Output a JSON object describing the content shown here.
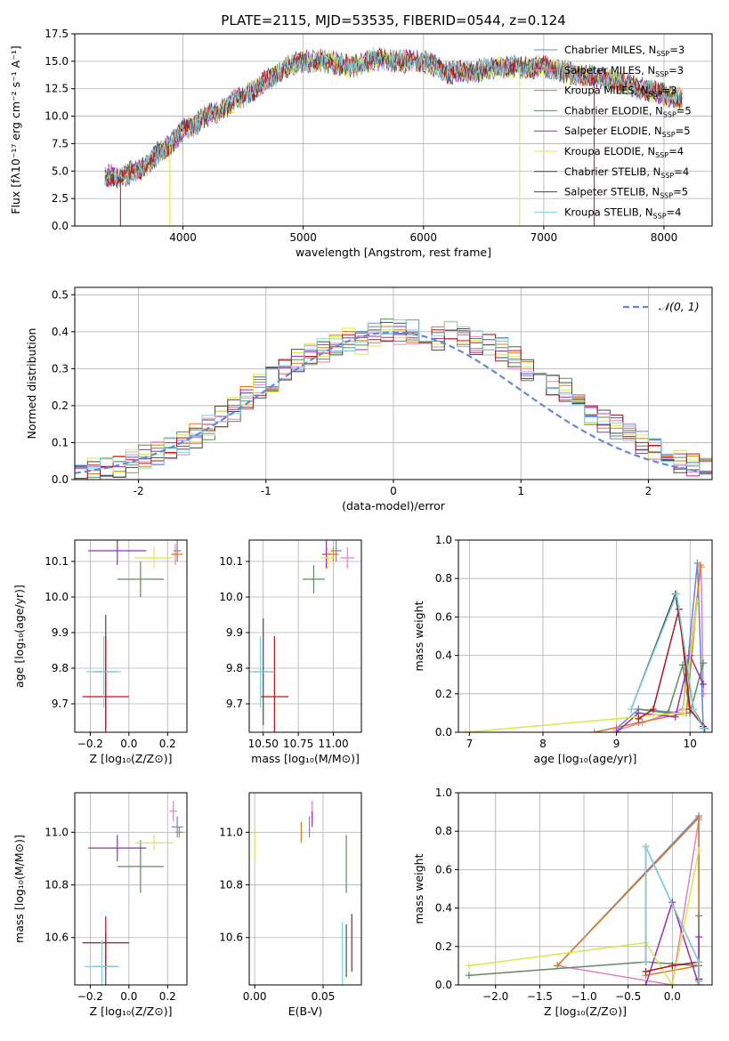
{
  "figure_title": "PLATE=2115, MJD=53535, FIBERID=0544, z=0.124",
  "chart_data": [
    {
      "id": "spectrum",
      "type": "line",
      "title": "PLATE=2115, MJD=53535, FIBERID=0544, z=0.124",
      "xlabel": "wavelength [Angstrom, rest frame]",
      "ylabel": "Flux [fλ10⁻¹⁷ erg cm⁻² s⁻¹ A⁻¹]",
      "xlim": [
        3100,
        8400
      ],
      "ylim": [
        0,
        17.5
      ],
      "xticks": [
        4000,
        5000,
        6000,
        7000,
        8000
      ],
      "yticks": [
        0.0,
        2.5,
        5.0,
        7.5,
        10.0,
        12.5,
        15.0,
        17.5
      ],
      "grid": true,
      "legend_position": "right",
      "continuum": {
        "x": [
          3350,
          3500,
          3600,
          3700,
          3800,
          3900,
          4000,
          4100,
          4200,
          4300,
          4400,
          4500,
          4600,
          4700,
          4800,
          4900,
          5000,
          5200,
          5400,
          5600,
          5800,
          6000,
          6200,
          6400,
          6600,
          6800,
          7000,
          7200,
          7400,
          7600,
          7800,
          8000,
          8150
        ],
        "y": [
          4.5,
          4.5,
          5.0,
          5.5,
          6.8,
          7.5,
          8.8,
          9.3,
          10.0,
          10.5,
          11.2,
          11.8,
          12.5,
          13.2,
          14.0,
          14.6,
          15.0,
          15.0,
          14.5,
          15.2,
          15.0,
          15.0,
          14.0,
          14.0,
          14.5,
          14.5,
          14.5,
          14.0,
          13.6,
          13.2,
          12.5,
          12.0,
          11.5
        ]
      },
      "spikes": [
        {
          "x": 3480,
          "y": 0,
          "series": "Salpeter STELIB"
        },
        {
          "x": 3890,
          "y": 0,
          "series": "Kroupa ELODIE"
        },
        {
          "x": 6800,
          "y": 0,
          "series": "Kroupa ELODIE"
        },
        {
          "x": 7420,
          "y": 0,
          "series": "Salpeter STELIB"
        }
      ],
      "series": [
        {
          "name": "Chabrier MILES",
          "nssp": "3",
          "color": "#6189d8"
        },
        {
          "name": "Salpeter MILES",
          "nssp": "3",
          "color": "#e282c3"
        },
        {
          "name": "Kroupa MILES",
          "nssp": "3",
          "color": "#e07b1c"
        },
        {
          "name": "Chabrier ELODIE",
          "nssp": "5",
          "color": "#5e8c5e"
        },
        {
          "name": "Salpeter ELODIE",
          "nssp": "5",
          "color": "#9a2fb3"
        },
        {
          "name": "Kroupa ELODIE",
          "nssp": "4",
          "color": "#d6e84e"
        },
        {
          "name": "Chabrier STELIB",
          "nssp": "4",
          "color": "#4a4a4a"
        },
        {
          "name": "Salpeter STELIB",
          "nssp": "5",
          "color": "#b3141e"
        },
        {
          "name": "Kroupa STELIB",
          "nssp": "4",
          "color": "#7fd4e0"
        }
      ]
    },
    {
      "id": "residuals",
      "type": "line",
      "xlabel": "(data-model)/error",
      "ylabel": "Normed distribution",
      "xlim": [
        -2.5,
        2.5
      ],
      "ylim": [
        0,
        0.52
      ],
      "xticks": [
        -2,
        -1,
        0,
        1,
        2
      ],
      "yticks": [
        0.0,
        0.1,
        0.2,
        0.3,
        0.4,
        0.5
      ],
      "grid": true,
      "legend_position": "top-right",
      "legend_label": "𝒩(0, 1)",
      "bin_width": 0.1,
      "bin_start": -2.5,
      "histogram": [
        0.03,
        0.03,
        0.035,
        0.04,
        0.05,
        0.06,
        0.07,
        0.085,
        0.1,
        0.12,
        0.14,
        0.165,
        0.19,
        0.22,
        0.25,
        0.27,
        0.29,
        0.32,
        0.34,
        0.35,
        0.37,
        0.38,
        0.37,
        0.39,
        0.4,
        0.4,
        0.4,
        0.39,
        0.38,
        0.4,
        0.38,
        0.37,
        0.36,
        0.35,
        0.33,
        0.3,
        0.28,
        0.26,
        0.24,
        0.21,
        0.18,
        0.16,
        0.14,
        0.12,
        0.1,
        0.08,
        0.07,
        0.05,
        0.04,
        0.03
      ],
      "gaussian": {
        "name": "N(0,1)",
        "color": "#6189d8"
      }
    },
    {
      "id": "age-vs-Z",
      "type": "scatter",
      "xlabel": "Z [log₁₀(Z/Z⊙)]",
      "ylabel": "age  [log₁₀(age/yr)]",
      "xlim": [
        -0.28,
        0.3
      ],
      "ylim": [
        9.62,
        10.16
      ],
      "xticks": [
        -0.2,
        0.0,
        0.2
      ],
      "xticklabels": [
        "−0.2",
        "0.0",
        "0.2"
      ],
      "yticks": [
        9.7,
        9.8,
        9.9,
        10.0,
        10.1
      ],
      "grid": true,
      "points": [
        {
          "x": 0.25,
          "y": 10.13,
          "xerr": 0.02,
          "yerr": 0.03,
          "color": "#6189d8"
        },
        {
          "x": 0.24,
          "y": 10.12,
          "xerr": 0.02,
          "yerr": 0.03,
          "color": "#e282c3"
        },
        {
          "x": 0.25,
          "y": 10.12,
          "xerr": 0.03,
          "yerr": 0.02,
          "color": "#e07b1c"
        },
        {
          "x": 0.06,
          "y": 10.05,
          "xerr": 0.12,
          "yerr": 0.05,
          "color": "#5e8c5e"
        },
        {
          "x": -0.06,
          "y": 10.13,
          "xerr": 0.15,
          "yerr": 0.04,
          "color": "#9a2fb3"
        },
        {
          "x": 0.13,
          "y": 10.11,
          "xerr": 0.1,
          "yerr": 0.03,
          "color": "#d6e84e"
        },
        {
          "x": -0.12,
          "y": 9.79,
          "xerr": 0.06,
          "yerr": 0.16,
          "color": "#4a4a4a"
        },
        {
          "x": -0.12,
          "y": 9.72,
          "xerr": 0.12,
          "yerr": 0.17,
          "color": "#b3141e"
        },
        {
          "x": -0.13,
          "y": 9.79,
          "xerr": 0.09,
          "yerr": 0.1,
          "color": "#7fd4e0"
        }
      ]
    },
    {
      "id": "age-vs-mass",
      "type": "scatter",
      "xlabel": "mass [log₁₀(M/M⊙)]",
      "xlim": [
        10.4,
        11.2
      ],
      "ylim": [
        9.62,
        10.16
      ],
      "xticks": [
        10.5,
        10.75,
        11.0
      ],
      "xticklabels": [
        "10.50",
        "10.75",
        "11.00"
      ],
      "yticks": [
        9.7,
        9.8,
        9.9,
        10.0,
        10.1
      ],
      "grid": true,
      "points": [
        {
          "x": 11.02,
          "y": 10.13,
          "xerr": 0.04,
          "yerr": 0.03,
          "color": "#6189d8"
        },
        {
          "x": 11.1,
          "y": 10.11,
          "xerr": 0.05,
          "yerr": 0.03,
          "color": "#e282c3"
        },
        {
          "x": 11.0,
          "y": 10.12,
          "xerr": 0.04,
          "yerr": 0.02,
          "color": "#e07b1c"
        },
        {
          "x": 10.86,
          "y": 10.05,
          "xerr": 0.08,
          "yerr": 0.04,
          "color": "#5e8c5e"
        },
        {
          "x": 10.95,
          "y": 10.12,
          "xerr": 0.03,
          "yerr": 0.04,
          "color": "#9a2fb3"
        },
        {
          "x": 10.96,
          "y": 10.11,
          "xerr": 0.05,
          "yerr": 0.03,
          "color": "#d6e84e"
        },
        {
          "x": 10.5,
          "y": 9.79,
          "xerr": 0.07,
          "yerr": 0.15,
          "color": "#4a4a4a"
        },
        {
          "x": 10.58,
          "y": 9.72,
          "xerr": 0.1,
          "yerr": 0.17,
          "color": "#b3141e"
        },
        {
          "x": 10.48,
          "y": 9.79,
          "xerr": 0.1,
          "yerr": 0.1,
          "color": "#7fd4e0"
        }
      ]
    },
    {
      "id": "mass-weight-vs-age",
      "type": "line",
      "xlabel": "age  [log₁₀(age/yr)]",
      "ylabel": "mass weight",
      "xlim": [
        6.85,
        10.3
      ],
      "ylim": [
        0,
        1.0
      ],
      "xticks": [
        7,
        8,
        9,
        10
      ],
      "yticks": [
        0.0,
        0.2,
        0.4,
        0.6,
        0.8,
        1.0
      ],
      "grid": true,
      "series": [
        {
          "color": "#6189d8",
          "x": [
            9.0,
            9.3,
            9.9,
            10.1,
            10.18
          ],
          "y": [
            0.02,
            0.12,
            0.1,
            0.88,
            0.02
          ]
        },
        {
          "color": "#e282c3",
          "x": [
            9.0,
            9.35,
            9.9,
            10.15,
            10.18
          ],
          "y": [
            0.01,
            0.05,
            0.12,
            0.86,
            0.2
          ]
        },
        {
          "color": "#e07b1c",
          "x": [
            8.7,
            9.3,
            9.95,
            10.14
          ],
          "y": [
            0.0,
            0.05,
            0.1,
            0.87
          ]
        },
        {
          "color": "#5e8c5e",
          "x": [
            9.3,
            9.7,
            9.9,
            10.0,
            10.18
          ],
          "y": [
            0.12,
            0.1,
            0.35,
            0.1,
            0.36
          ]
        },
        {
          "color": "#9a2fb3",
          "x": [
            9.0,
            9.3,
            9.8,
            10.0,
            10.18
          ],
          "y": [
            0.0,
            0.1,
            0.08,
            0.4,
            0.25
          ]
        },
        {
          "color": "#d6e84e",
          "x": [
            6.95,
            9.0,
            9.5,
            9.9,
            10.1
          ],
          "y": [
            0.0,
            0.07,
            0.09,
            0.1,
            0.68
          ]
        },
        {
          "color": "#4a4a4a",
          "x": [
            9.2,
            9.8,
            10.05,
            10.2
          ],
          "y": [
            0.12,
            0.72,
            0.12,
            0.02
          ]
        },
        {
          "color": "#b3141e",
          "x": [
            9.3,
            9.5,
            9.85,
            10.0,
            10.18
          ],
          "y": [
            0.07,
            0.12,
            0.64,
            0.12,
            0.03
          ]
        },
        {
          "color": "#7fd4e0",
          "x": [
            9.2,
            9.82,
            10.05,
            10.18
          ],
          "y": [
            0.12,
            0.72,
            0.12,
            0.02
          ]
        }
      ]
    },
    {
      "id": "mass-vs-Z",
      "type": "scatter",
      "xlabel": "Z [log₁₀(Z/Z⊙)]",
      "ylabel": "mass [log₁₀(M/M⊙)]",
      "xlim": [
        -0.28,
        0.3
      ],
      "ylim": [
        10.42,
        11.15
      ],
      "xticks": [
        -0.2,
        0.0,
        0.2
      ],
      "xticklabels": [
        "−0.2",
        "0.0",
        "0.2"
      ],
      "yticks": [
        10.6,
        10.8,
        11.0
      ],
      "grid": true,
      "points": [
        {
          "x": 0.25,
          "y": 11.02,
          "xerr": 0.03,
          "yerr": 0.04,
          "color": "#6189d8"
        },
        {
          "x": 0.23,
          "y": 11.08,
          "xerr": 0.02,
          "yerr": 0.04,
          "color": "#e282c3"
        },
        {
          "x": 0.26,
          "y": 11.0,
          "xerr": 0.02,
          "yerr": 0.02,
          "color": "#e07b1c"
        },
        {
          "x": 0.06,
          "y": 10.87,
          "xerr": 0.12,
          "yerr": 0.1,
          "color": "#5e8c5e"
        },
        {
          "x": -0.06,
          "y": 10.94,
          "xerr": 0.15,
          "yerr": 0.05,
          "color": "#9a2fb3"
        },
        {
          "x": 0.13,
          "y": 10.96,
          "xerr": 0.1,
          "yerr": 0.03,
          "color": "#d6e84e"
        },
        {
          "x": -0.12,
          "y": 10.49,
          "xerr": 0.06,
          "yerr": 0.13,
          "color": "#4a4a4a"
        },
        {
          "x": -0.12,
          "y": 10.58,
          "xerr": 0.12,
          "yerr": 0.1,
          "color": "#b3141e"
        },
        {
          "x": -0.14,
          "y": 10.49,
          "xerr": 0.09,
          "yerr": 0.1,
          "color": "#7fd4e0"
        }
      ]
    },
    {
      "id": "mass-vs-ebv",
      "type": "scatter",
      "xlabel": "E(B-V)",
      "xlim": [
        -0.004,
        0.078
      ],
      "ylim": [
        10.42,
        11.15
      ],
      "xticks": [
        0.0,
        0.05
      ],
      "xticklabels": [
        "0.00",
        "0.05"
      ],
      "yticks": [
        10.6,
        10.8,
        11.0
      ],
      "grid": true,
      "points": [
        {
          "x": 0.04,
          "y": 11.02,
          "xerr": 0,
          "yerr": 0.04,
          "color": "#6189d8"
        },
        {
          "x": 0.042,
          "y": 11.08,
          "xerr": 0,
          "yerr": 0.04,
          "color": "#e282c3"
        },
        {
          "x": 0.034,
          "y": 11.0,
          "xerr": 0,
          "yerr": 0.04,
          "color": "#e07b1c"
        },
        {
          "x": 0.067,
          "y": 10.88,
          "xerr": 0,
          "yerr": 0.11,
          "color": "#5e8c5e"
        },
        {
          "x": 0.042,
          "y": 11.05,
          "xerr": 0,
          "yerr": 0.03,
          "color": "#9a2fb3"
        },
        {
          "x": 0.0,
          "y": 10.95,
          "xerr": 0,
          "yerr": 0.06,
          "color": "#d6e84e"
        },
        {
          "x": 0.067,
          "y": 10.55,
          "xerr": 0,
          "yerr": 0.1,
          "color": "#4a4a4a"
        },
        {
          "x": 0.071,
          "y": 10.58,
          "xerr": 0,
          "yerr": 0.11,
          "color": "#b3141e"
        },
        {
          "x": 0.064,
          "y": 10.54,
          "xerr": 0,
          "yerr": 0.12,
          "color": "#7fd4e0"
        }
      ]
    },
    {
      "id": "mass-weight-vs-Z",
      "type": "line",
      "xlabel": "Z [log₁₀(Z/Z⊙)]",
      "ylabel": "mass weight",
      "xlim": [
        -2.42,
        0.45
      ],
      "ylim": [
        0,
        1.0
      ],
      "xticks": [
        -2.0,
        -1.5,
        -1.0,
        -0.5,
        0.0
      ],
      "xticklabels": [
        "−2.0",
        "−1.5",
        "−1.0",
        "−0.5",
        "0.0"
      ],
      "yticks": [
        0.0,
        0.2,
        0.4,
        0.6,
        0.8,
        1.0
      ],
      "grid": true,
      "series": [
        {
          "color": "#6189d8",
          "x": [
            -1.3,
            0.3,
            0.3
          ],
          "y": [
            0.1,
            0.88,
            0.03
          ]
        },
        {
          "color": "#e282c3",
          "x": [
            -1.3,
            0.0,
            0.3,
            0.0
          ],
          "y": [
            0.1,
            0.0,
            0.86,
            0.0
          ]
        },
        {
          "color": "#e07b1c",
          "x": [
            -1.3,
            0.3,
            0.3,
            -0.3
          ],
          "y": [
            0.1,
            0.87,
            0.1,
            0.05
          ]
        },
        {
          "color": "#5e8c5e",
          "x": [
            -2.3,
            -0.3,
            0.3,
            0.3
          ],
          "y": [
            0.05,
            0.12,
            0.1,
            0.36
          ]
        },
        {
          "color": "#9a2fb3",
          "x": [
            -0.3,
            0.0,
            0.3,
            0.3
          ],
          "y": [
            0.0,
            0.43,
            0.0,
            0.25
          ]
        },
        {
          "color": "#d6e84e",
          "x": [
            -2.3,
            -0.3,
            0.0,
            0.3
          ],
          "y": [
            0.1,
            0.22,
            0.0,
            0.7
          ]
        },
        {
          "color": "#4a4a4a",
          "x": [
            -0.3,
            -0.3,
            0.3,
            0.3
          ],
          "y": [
            0.12,
            0.72,
            0.12,
            0.02
          ]
        },
        {
          "color": "#b3141e",
          "x": [
            -0.3,
            0.0,
            0.3,
            0.3
          ],
          "y": [
            0.07,
            0.1,
            0.12,
            0.03
          ]
        },
        {
          "color": "#7fd4e0",
          "x": [
            -0.3,
            -0.3,
            0.3,
            0.3
          ],
          "y": [
            0.12,
            0.72,
            0.12,
            0.02
          ]
        }
      ]
    }
  ]
}
